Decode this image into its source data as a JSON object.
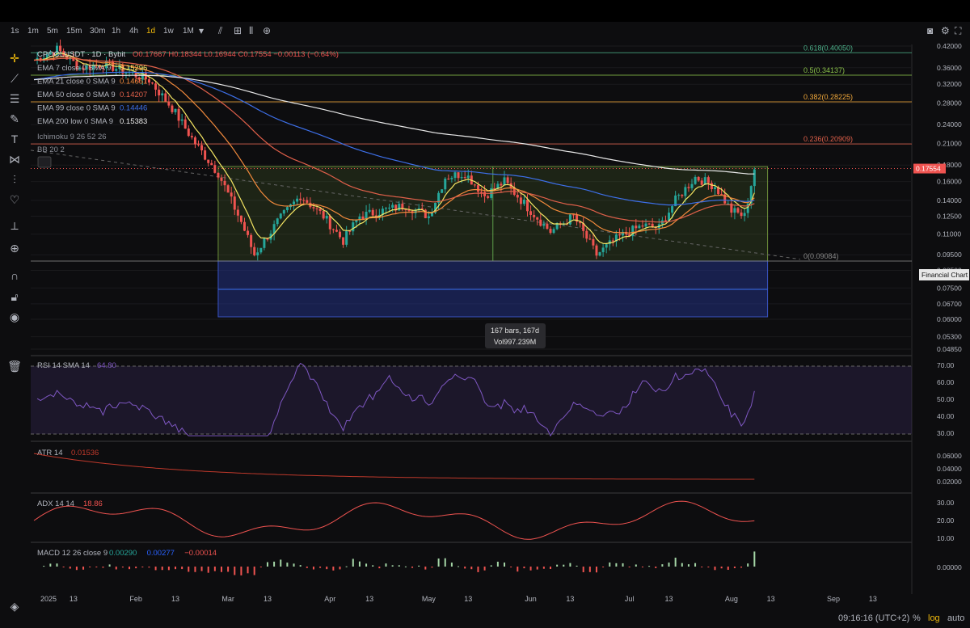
{
  "toolbar": {
    "timeframes": [
      "1s",
      "1m",
      "5m",
      "15m",
      "30m",
      "1h",
      "4h",
      "1d",
      "1w",
      "1M"
    ],
    "active_timeframe": "1d",
    "icons": [
      "chevron-down-icon",
      "indicators-icon",
      "compare-icon",
      "chart-type-icon",
      "add-icon"
    ],
    "right_icons": [
      "camera-icon",
      "settings-icon",
      "fullscreen-icon"
    ]
  },
  "left_tools": [
    "crosshair-icon",
    "trendline-icon",
    "fib-icon",
    "brush-icon",
    "text-icon",
    "pattern-icon",
    "measure-icon",
    "favorite-icon",
    "ruler-icon",
    "zoom-icon",
    "magnet-icon",
    "lock-icon",
    "eye-icon",
    "trash-icon"
  ],
  "legend": {
    "symbol": "CPOOLUSDT · 1D · Bybit",
    "ohlc": "O0.17667 H0.18344 L0.16944 C0.17554 −0.00113 (−0.64%)",
    "ema": [
      {
        "label": "EMA 7 close 0 SMA 9",
        "value": "0.15296",
        "color": "#f5e663"
      },
      {
        "label": "EMA 21 close 0 SMA 9",
        "value": "0.14651",
        "color": "#f28a3c"
      },
      {
        "label": "EMA 50 close 0 SMA 9",
        "value": "0.14207",
        "color": "#e0604a"
      },
      {
        "label": "EMA 99 close 0 SMA 9",
        "value": "0.14446",
        "color": "#3d6fe8"
      },
      {
        "label": "EMA 200 low 0 SMA 9",
        "value": "0.15383",
        "color": "#e8e8e8"
      }
    ],
    "ichimoku": "Ichimoku 9 26 52 26",
    "bb": "BB 20 2"
  },
  "chart_data": {
    "type": "candlestick",
    "symbol": "CPOOLUSDT",
    "timeframe": "1D",
    "exchange": "Bybit",
    "y_scale": "log",
    "y_ticks": [
      0.42,
      0.36,
      0.32,
      0.28,
      0.24,
      0.21,
      0.18,
      0.16,
      0.14,
      0.125,
      0.11,
      0.095,
      0.085,
      0.075,
      0.067,
      0.06,
      0.053,
      0.0485
    ],
    "y_tick_labels": [
      "0.42000",
      "0.36000",
      "0.32000",
      "0.28000",
      "0.24000",
      "0.21000",
      "0.18000",
      "0.16000",
      "0.14000",
      "0.12500",
      "0.11000",
      "0.09500",
      "0.08500",
      "0.07500",
      "0.06700",
      "0.06000",
      "0.05300",
      "0.04850"
    ],
    "x_ticks": [
      "2025",
      "13",
      "Feb",
      "13",
      "Mar",
      "13",
      "Apr",
      "13",
      "May",
      "13",
      "Jun",
      "13",
      "Jul",
      "13",
      "Aug",
      "13",
      "Sep",
      "13"
    ],
    "last_price": "0.17554",
    "fib_levels": [
      {
        "label": "0.618(0.40050)",
        "value": 0.4005,
        "color": "#4caf88"
      },
      {
        "label": "0.5(0.34137)",
        "value": 0.34137,
        "color": "#8bc34a"
      },
      {
        "label": "0.382(0.28225)",
        "value": 0.28225,
        "color": "#f2a93b"
      },
      {
        "label": "0.236(0.20909)",
        "value": 0.20909,
        "color": "#e0604a"
      },
      {
        "label": "0(0.09084)",
        "value": 0.09084,
        "color": "#888888"
      }
    ],
    "price_path": [
      [
        "2025-01-01",
        0.38
      ],
      [
        "2025-01-08",
        0.41
      ],
      [
        "2025-01-15",
        0.36
      ],
      [
        "2025-01-22",
        0.37
      ],
      [
        "2025-01-29",
        0.35
      ],
      [
        "2025-02-05",
        0.33
      ],
      [
        "2025-02-12",
        0.27
      ],
      [
        "2025-02-19",
        0.21
      ],
      [
        "2025-02-26",
        0.17
      ],
      [
        "2025-03-05",
        0.12
      ],
      [
        "2025-03-09",
        0.095
      ],
      [
        "2025-03-16",
        0.12
      ],
      [
        "2025-03-23",
        0.145
      ],
      [
        "2025-03-30",
        0.125
      ],
      [
        "2025-04-05",
        0.105
      ],
      [
        "2025-04-10",
        0.125
      ],
      [
        "2025-04-17",
        0.13
      ],
      [
        "2025-04-24",
        0.135
      ],
      [
        "2025-05-01",
        0.125
      ],
      [
        "2025-05-06",
        0.165
      ],
      [
        "2025-05-12",
        0.17
      ],
      [
        "2025-05-18",
        0.145
      ],
      [
        "2025-05-24",
        0.16
      ],
      [
        "2025-06-01",
        0.13
      ],
      [
        "2025-06-07",
        0.112
      ],
      [
        "2025-06-14",
        0.125
      ],
      [
        "2025-06-21",
        0.095
      ],
      [
        "2025-06-28",
        0.108
      ],
      [
        "2025-07-05",
        0.117
      ],
      [
        "2025-07-10",
        0.115
      ],
      [
        "2025-07-15",
        0.14
      ],
      [
        "2025-07-21",
        0.165
      ],
      [
        "2025-07-27",
        0.155
      ],
      [
        "2025-08-01",
        0.13
      ],
      [
        "2025-08-05",
        0.125
      ],
      [
        "2025-08-08",
        0.1755
      ]
    ],
    "measure": {
      "bars": "167 bars, 167d",
      "volume": "Vol997.239M",
      "low": 0.09084,
      "high": 0.178
    },
    "hover_tag": "Financial Chart",
    "panes": [
      {
        "name": "RSI 14 SMA 14",
        "value": "64.80",
        "color": "#7e57c2",
        "ticks": [
          "70.00",
          "60.00",
          "50.00",
          "40.00",
          "30.00"
        ]
      },
      {
        "name": "ATR 14",
        "value": "0.01536",
        "color": "#c0392b",
        "ticks": [
          "0.06000",
          "0.04000",
          "0.02000"
        ]
      },
      {
        "name": "ADX 14 14",
        "value": "18.86",
        "color": "#ef5350",
        "ticks": [
          "30.00",
          "20.00",
          "10.00"
        ]
      },
      {
        "name": "MACD 12 26 close 9",
        "values": [
          {
            "v": "0.00290",
            "c": "#26a69a"
          },
          {
            "v": "0.00277",
            "c": "#2962ff"
          },
          {
            "v": "−0.00014",
            "c": "#ef5350"
          }
        ],
        "ticks": [
          "0.00000"
        ]
      }
    ]
  },
  "status": {
    "time": "09:16:16 (UTC+2)",
    "percent": "%",
    "log": "log",
    "auto": "auto"
  }
}
